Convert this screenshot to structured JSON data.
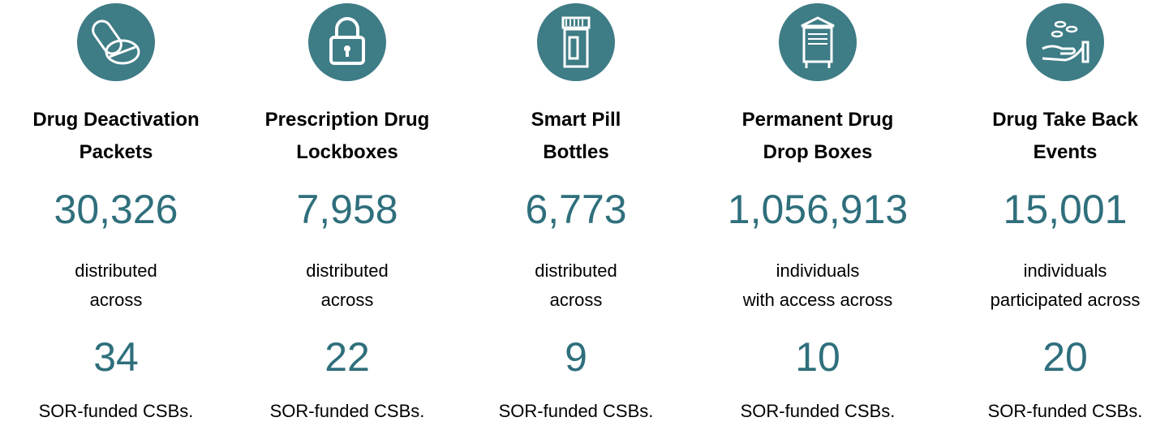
{
  "items": [
    {
      "title": [
        "Drug Deactivation",
        "Packets"
      ],
      "count": "30,326",
      "description": [
        "distributed",
        "across"
      ],
      "csbs": "34",
      "footer": "SOR-funded CSBs."
    },
    {
      "title": [
        "Prescription Drug",
        "Lockboxes"
      ],
      "count": "7,958",
      "description": [
        "distributed",
        "across"
      ],
      "csbs": "22",
      "footer": "SOR-funded CSBs."
    },
    {
      "title": [
        "Smart Pill",
        "Bottles"
      ],
      "count": "6,773",
      "description": [
        "distributed",
        "across"
      ],
      "csbs": "9",
      "footer": "SOR-funded CSBs."
    },
    {
      "title": [
        "Permanent Drug",
        "Drop Boxes"
      ],
      "count": "1,056,913",
      "description": [
        "individuals",
        "with access across"
      ],
      "csbs": "10",
      "footer": "SOR-funded CSBs."
    },
    {
      "title": [
        "Drug Take Back",
        "Events"
      ],
      "count": "15,001",
      "description": [
        "individuals",
        "participated across"
      ],
      "csbs": "20",
      "footer": "SOR-funded CSBs."
    }
  ]
}
